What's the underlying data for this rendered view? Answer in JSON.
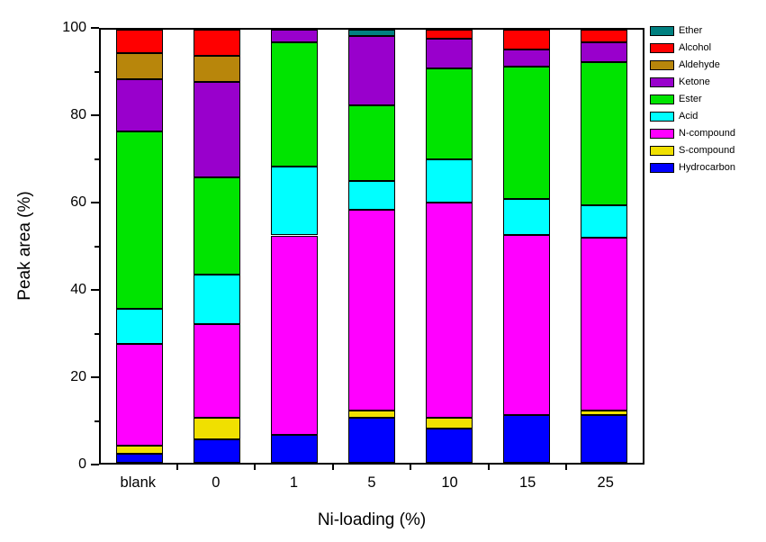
{
  "figure": {
    "background": "#ffffff",
    "frame_color": "#000000"
  },
  "chart_data": {
    "type": "bar",
    "stacked": true,
    "title": "",
    "xlabel": "Ni-loading (%)",
    "ylabel": "Peak area (%)",
    "ylim": [
      0,
      100
    ],
    "y_major_ticks": [
      0,
      20,
      40,
      60,
      80,
      100
    ],
    "y_minor_ticks": [
      10,
      30,
      50,
      70,
      90
    ],
    "grid": false,
    "legend_position": "right-outside",
    "legend_order_top_to_bottom": [
      "Ether",
      "Alcohol",
      "Aldehyde",
      "Ketone",
      "Ester",
      "Acid",
      "N-compound",
      "S-compound",
      "Hydrocarbon"
    ],
    "categories": [
      "blank",
      "0",
      "1",
      "5",
      "10",
      "15",
      "25"
    ],
    "series": [
      {
        "name": "Hydrocarbon",
        "color": "#0000FF",
        "values": [
          2,
          5.5,
          6.5,
          10.5,
          8,
          11,
          11
        ]
      },
      {
        "name": "S-compound",
        "color": "#F0E000",
        "values": [
          2,
          5,
          0,
          1.5,
          2.5,
          0,
          1
        ]
      },
      {
        "name": "N-compound",
        "color": "#FF00FF",
        "values": [
          23.5,
          21.5,
          46,
          46.5,
          49.5,
          41.5,
          40
        ]
      },
      {
        "name": "Acid",
        "color": "#00FFFF",
        "values": [
          8,
          11.5,
          16,
          6.5,
          10,
          8.5,
          7.5
        ]
      },
      {
        "name": "Ester",
        "color": "#00E400",
        "values": [
          41,
          22.5,
          28.5,
          17.5,
          21,
          30.5,
          33
        ]
      },
      {
        "name": "Ketone",
        "color": "#9900CC",
        "values": [
          12,
          22,
          3,
          16,
          7,
          4,
          4.5
        ]
      },
      {
        "name": "Aldehyde",
        "color": "#B8860B",
        "values": [
          6,
          6,
          0,
          0,
          0,
          0,
          0
        ]
      },
      {
        "name": "Alcohol",
        "color": "#FF0000",
        "values": [
          5.5,
          6,
          0,
          0,
          2,
          4.5,
          3
        ]
      },
      {
        "name": "Ether",
        "color": "#008080",
        "values": [
          0,
          0,
          0,
          1.5,
          0,
          0,
          0
        ]
      }
    ]
  }
}
